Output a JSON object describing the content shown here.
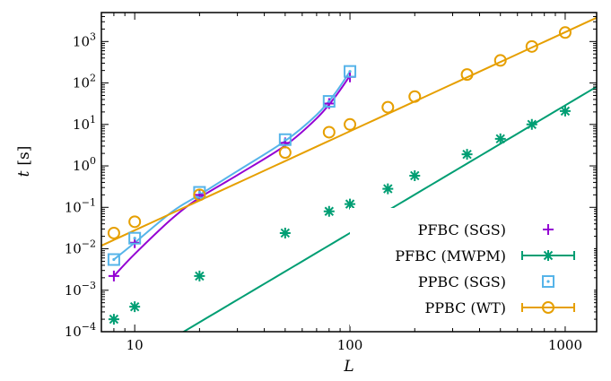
{
  "chart_data": {
    "type": "scatter",
    "xlabel": "L",
    "ylabel": "t",
    "ylabel_unit": "[s]",
    "xscale": "log",
    "yscale": "log",
    "xlim": [
      7,
      1400
    ],
    "ylim": [
      0.0001,
      5000
    ],
    "xticks": [
      {
        "value": 10,
        "label": "10"
      },
      {
        "value": 100,
        "label": "100"
      },
      {
        "value": 1000,
        "label": "1000"
      }
    ],
    "yticks": [
      {
        "value": 0.0001,
        "base": "10",
        "exp": "−4"
      },
      {
        "value": 0.001,
        "base": "10",
        "exp": "−3"
      },
      {
        "value": 0.01,
        "base": "10",
        "exp": "−2"
      },
      {
        "value": 0.1,
        "base": "10",
        "exp": "−1"
      },
      {
        "value": 1,
        "base": "10",
        "exp": "0"
      },
      {
        "value": 10,
        "base": "10",
        "exp": "1"
      },
      {
        "value": 100,
        "base": "10",
        "exp": "2"
      },
      {
        "value": 1000,
        "base": "10",
        "exp": "3"
      }
    ],
    "grid": false,
    "legend_position": "bottom-right",
    "series": [
      {
        "name": "PFBC (SGS)",
        "color": "#9400d3",
        "marker": "plus",
        "points": [
          [
            8,
            0.0022
          ],
          [
            10,
            0.014
          ],
          [
            20,
            0.2
          ],
          [
            50,
            3.6
          ],
          [
            80,
            32
          ],
          [
            100,
            140
          ]
        ],
        "fit": {
          "kind": "curve",
          "points": [
            [
              8,
              0.0022
            ],
            [
              10,
              0.0075
            ],
            [
              15,
              0.055
            ],
            [
              20,
              0.17
            ],
            [
              30,
              0.6
            ],
            [
              50,
              3.1
            ],
            [
              70,
              14
            ],
            [
              85,
              45
            ],
            [
              100,
              150
            ]
          ]
        }
      },
      {
        "name": "PFBC (MWPM)",
        "color": "#009e73",
        "marker": "star",
        "points": [
          [
            8,
            0.0002
          ],
          [
            10,
            0.0004
          ],
          [
            20,
            0.0022
          ],
          [
            50,
            0.024
          ],
          [
            80,
            0.08
          ],
          [
            100,
            0.12
          ],
          [
            150,
            0.28
          ],
          [
            200,
            0.58
          ],
          [
            350,
            1.9
          ],
          [
            500,
            4.5
          ],
          [
            700,
            10
          ],
          [
            1000,
            21
          ]
        ],
        "fit": {
          "kind": "powerlaw",
          "a": 1.66e-08,
          "b": 3.08
        }
      },
      {
        "name": "PPBC (SGS)",
        "color": "#56b4e9",
        "marker": "square-dot",
        "points": [
          [
            8,
            0.0055
          ],
          [
            10,
            0.018
          ],
          [
            20,
            0.23
          ],
          [
            50,
            4.3
          ],
          [
            80,
            36
          ],
          [
            100,
            190
          ]
        ],
        "fit": {
          "kind": "curve",
          "points": [
            [
              8,
              0.0055
            ],
            [
              10,
              0.014
            ],
            [
              15,
              0.08
            ],
            [
              20,
              0.2
            ],
            [
              30,
              0.75
            ],
            [
              50,
              4.0
            ],
            [
              70,
              17
            ],
            [
              85,
              55
            ],
            [
              100,
              190
            ]
          ]
        }
      },
      {
        "name": "PPBC (WT)",
        "color": "#e69f00",
        "marker": "circle",
        "points": [
          [
            8,
            0.024
          ],
          [
            10,
            0.045
          ],
          [
            20,
            0.2
          ],
          [
            50,
            2.1
          ],
          [
            80,
            6.5
          ],
          [
            100,
            10
          ],
          [
            150,
            26
          ],
          [
            200,
            47
          ],
          [
            350,
            160
          ],
          [
            500,
            350
          ],
          [
            700,
            760
          ],
          [
            1000,
            1650
          ]
        ],
        "fit": {
          "kind": "powerlaw",
          "a": 0.0001137,
          "b": 2.39
        }
      }
    ]
  }
}
